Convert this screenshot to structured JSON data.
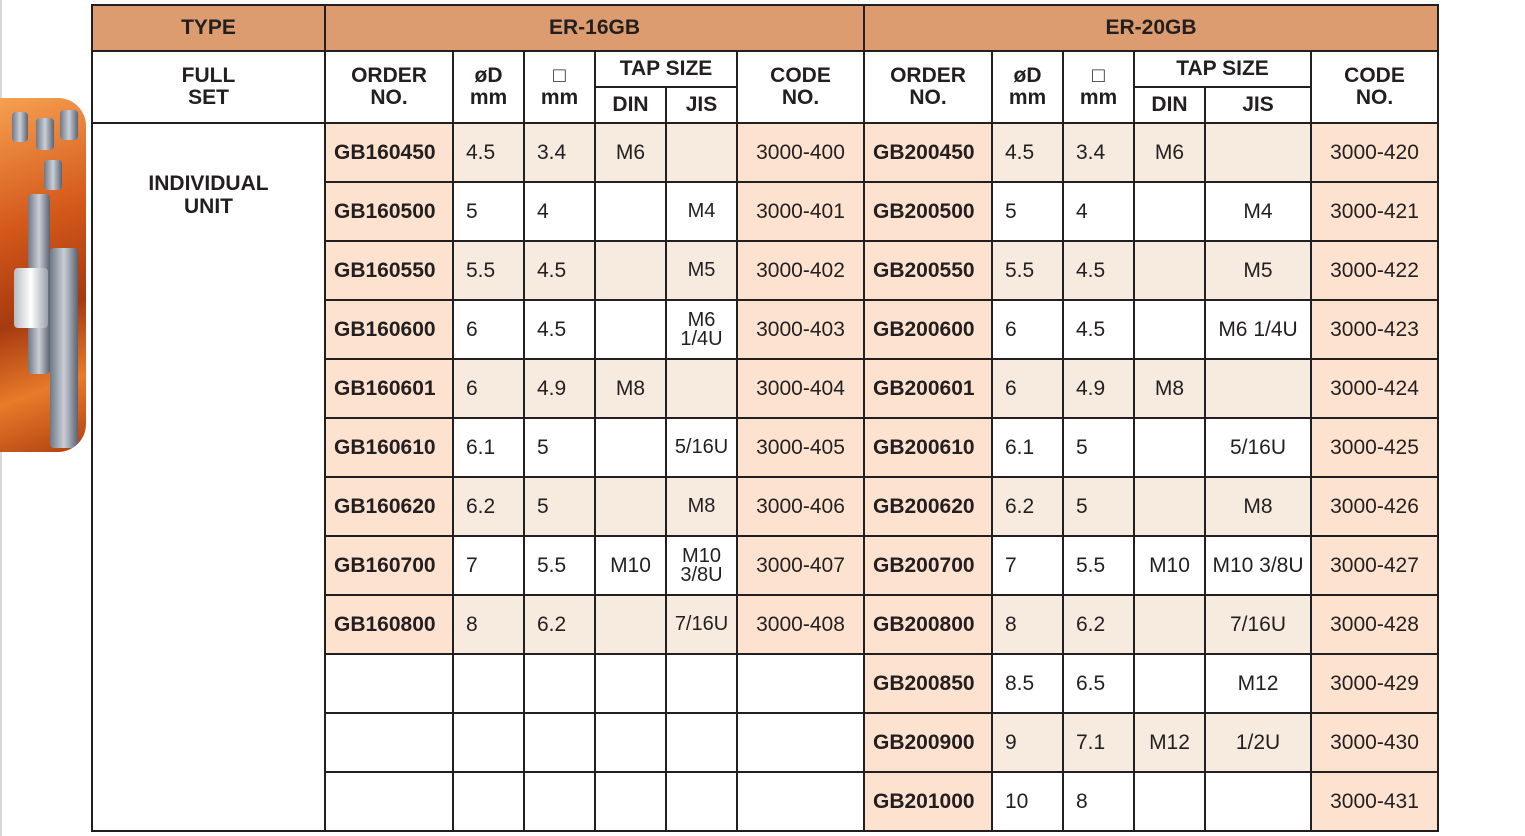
{
  "header": {
    "type": "TYPE",
    "groups": [
      "ER-16GB",
      "ER-20GB"
    ]
  },
  "subheader": {
    "full_set": "FULL SET",
    "order_no": "ORDER NO.",
    "od": "øD mm",
    "sq": "□ mm",
    "tap_size": "TAP SIZE",
    "din": "DIN",
    "jis": "JIS",
    "code_no": "CODE NO."
  },
  "type_label": "INDIVIDUAL UNIT",
  "colors": {
    "header": "#dc9c6f",
    "order_code_cell": "#fde3cf",
    "alt_row": "#f7ebdf"
  },
  "er16": [
    [
      "GB160450",
      "4.5",
      "3.4",
      "M6",
      "",
      "3000-400"
    ],
    [
      "GB160500",
      "5",
      "4",
      "",
      "M4",
      "3000-401"
    ],
    [
      "GB160550",
      "5.5",
      "4.5",
      "",
      "M5",
      "3000-402"
    ],
    [
      "GB160600",
      "6",
      "4.5",
      "",
      "M6 1/4U",
      "3000-403"
    ],
    [
      "GB160601",
      "6",
      "4.9",
      "M8",
      "",
      "3000-404"
    ],
    [
      "GB160610",
      "6.1",
      "5",
      "",
      "5/16U",
      "3000-405"
    ],
    [
      "GB160620",
      "6.2",
      "5",
      "",
      "M8",
      "3000-406"
    ],
    [
      "GB160700",
      "7",
      "5.5",
      "M10",
      "M10 3/8U",
      "3000-407"
    ],
    [
      "GB160800",
      "8",
      "6.2",
      "",
      "7/16U",
      "3000-408"
    ]
  ],
  "er20": [
    [
      "GB200450",
      "4.5",
      "3.4",
      "M6",
      "",
      "3000-420"
    ],
    [
      "GB200500",
      "5",
      "4",
      "",
      "M4",
      "3000-421"
    ],
    [
      "GB200550",
      "5.5",
      "4.5",
      "",
      "M5",
      "3000-422"
    ],
    [
      "GB200600",
      "6",
      "4.5",
      "",
      "M6 1/4U",
      "3000-423"
    ],
    [
      "GB200601",
      "6",
      "4.9",
      "M8",
      "",
      "3000-424"
    ],
    [
      "GB200610",
      "6.1",
      "5",
      "",
      "5/16U",
      "3000-425"
    ],
    [
      "GB200620",
      "6.2",
      "5",
      "",
      "M8",
      "3000-426"
    ],
    [
      "GB200700",
      "7",
      "5.5",
      "M10",
      "M10 3/8U",
      "3000-427"
    ],
    [
      "GB200800",
      "8",
      "6.2",
      "",
      "7/16U",
      "3000-428"
    ],
    [
      "GB200850",
      "8.5",
      "6.5",
      "",
      "M12",
      "3000-429"
    ],
    [
      "GB200900",
      "9",
      "7.1",
      "M12",
      "1/2U",
      "3000-430"
    ],
    [
      "GB201000",
      "10",
      "8",
      "",
      "",
      "3000-431"
    ]
  ]
}
